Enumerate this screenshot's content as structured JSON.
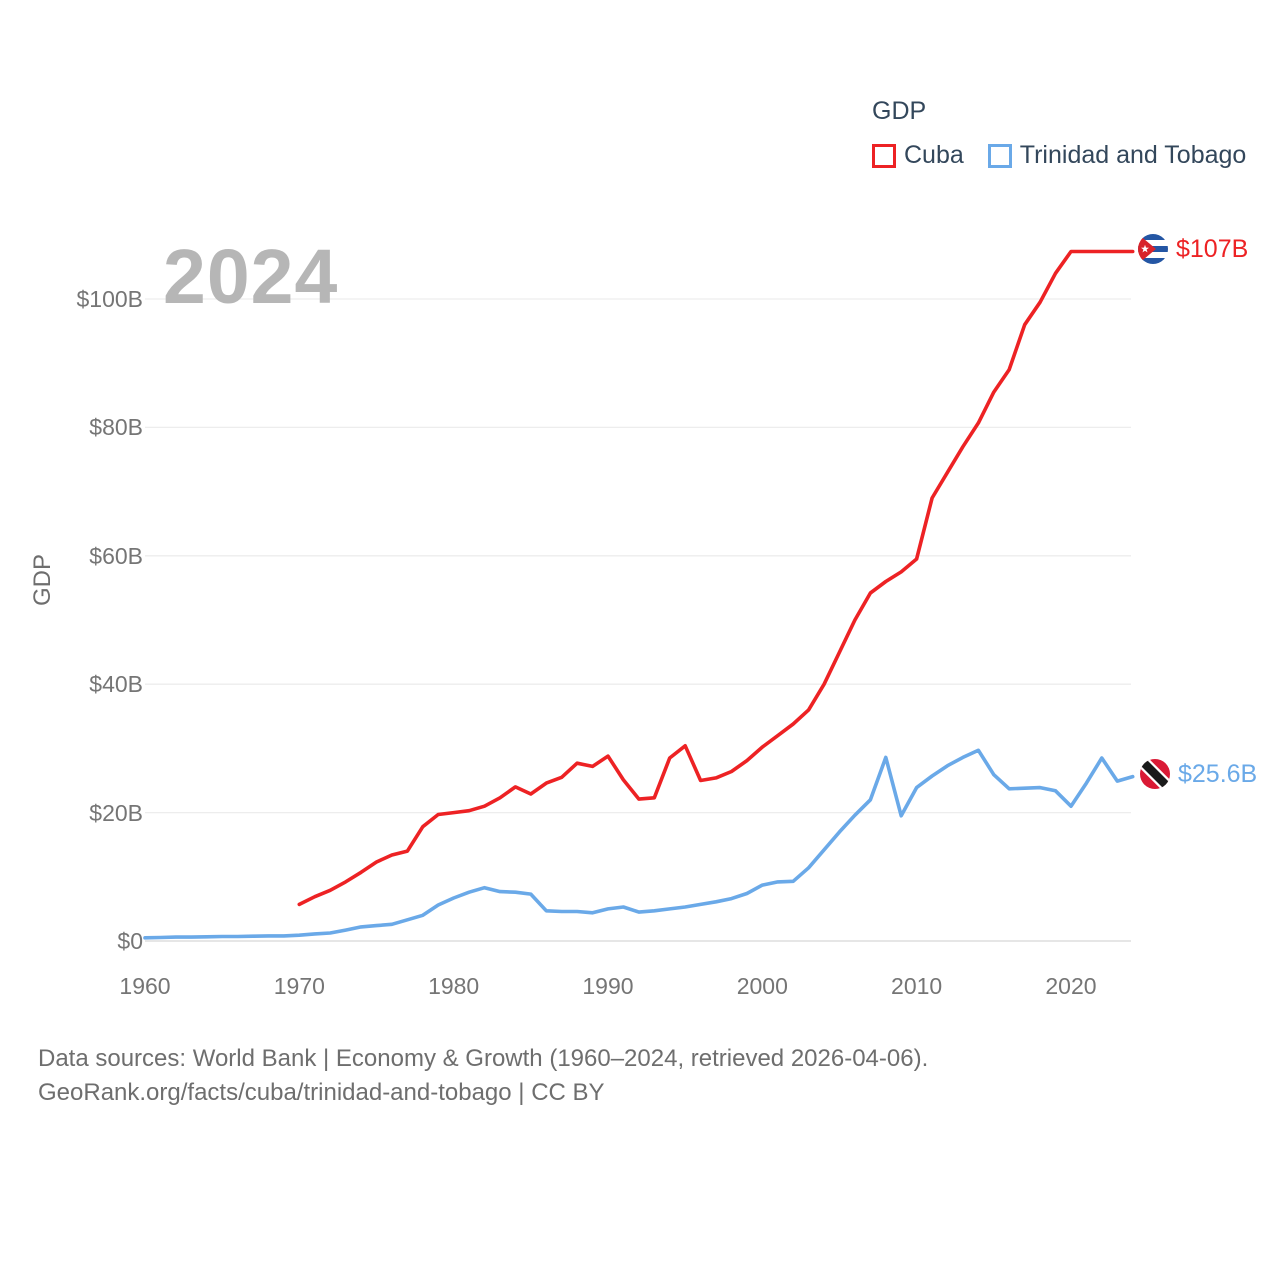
{
  "legend": {
    "title": "GDP",
    "items": [
      {
        "label": "Cuba",
        "color": "#ed2224"
      },
      {
        "label": "Trinidad and Tobago",
        "color": "#6aa9e8"
      }
    ]
  },
  "watermark": "2024",
  "y_axis_title": "GDP",
  "end_labels": [
    {
      "series": "Cuba",
      "label": "$107B",
      "color": "#ed2224",
      "flag_icon": "cuba-flag-icon"
    },
    {
      "series": "Trinidad and Tobago",
      "label": "$25.6B",
      "color": "#6aa9e8",
      "flag_icon": "trinidad-and-tobago-flag-icon"
    }
  ],
  "footer": {
    "line1": "Data sources: World Bank | Economy & Growth (1960–2024, retrieved 2026-04-06).",
    "line2": "GeoRank.org/facts/cuba/trinidad-and-tobago | CC BY"
  },
  "chart_data": {
    "type": "line",
    "title": "GDP",
    "xlabel": "",
    "ylabel": "GDP",
    "x_range": [
      1960,
      2024
    ],
    "ylim": [
      0,
      112
    ],
    "grid": "horizontal",
    "legend_position": "top-right",
    "y_ticks": [
      {
        "value": 0,
        "label": "$0"
      },
      {
        "value": 20,
        "label": "$20B"
      },
      {
        "value": 40,
        "label": "$40B"
      },
      {
        "value": 60,
        "label": "$60B"
      },
      {
        "value": 80,
        "label": "$80B"
      },
      {
        "value": 100,
        "label": "$100B"
      }
    ],
    "x_ticks": [
      {
        "value": 1960,
        "label": "1960"
      },
      {
        "value": 1970,
        "label": "1970"
      },
      {
        "value": 1980,
        "label": "1980"
      },
      {
        "value": 1990,
        "label": "1990"
      },
      {
        "value": 2000,
        "label": "2000"
      },
      {
        "value": 2010,
        "label": "2010"
      },
      {
        "value": 2020,
        "label": "2020"
      }
    ],
    "series": [
      {
        "name": "Cuba",
        "color": "#ed2224",
        "unit": "billion USD",
        "start_year": 1970,
        "values": [
          5.7,
          6.9,
          7.9,
          9.2,
          10.7,
          12.3,
          13.4,
          14.0,
          17.8,
          19.7,
          20.0,
          20.3,
          21.0,
          22.3,
          24.0,
          22.9,
          24.6,
          25.5,
          27.7,
          27.2,
          28.8,
          25.1,
          22.1,
          22.3,
          28.5,
          30.4,
          25.0,
          25.4,
          26.4,
          28.1,
          30.2,
          32.0,
          33.8,
          36.0,
          40.0,
          45.0,
          50.0,
          54.2,
          56.0,
          57.5,
          59.5,
          69.0,
          73.0,
          77.0,
          80.7,
          85.5,
          89.0,
          96.0,
          99.5,
          104.0,
          107.4,
          107.4,
          107.4,
          107.4,
          107.4
        ]
      },
      {
        "name": "Trinidad and Tobago",
        "color": "#6aa9e8",
        "unit": "billion USD",
        "start_year": 1960,
        "values": [
          0.5,
          0.55,
          0.6,
          0.6,
          0.65,
          0.7,
          0.7,
          0.75,
          0.8,
          0.8,
          0.9,
          1.1,
          1.25,
          1.7,
          2.2,
          2.4,
          2.6,
          3.3,
          4.0,
          5.6,
          6.7,
          7.6,
          8.3,
          7.7,
          7.6,
          7.3,
          4.7,
          4.6,
          4.6,
          4.4,
          5.0,
          5.3,
          4.5,
          4.7,
          5.0,
          5.3,
          5.7,
          6.1,
          6.6,
          7.4,
          8.7,
          9.2,
          9.3,
          11.4,
          14.2,
          17.0,
          19.6,
          22.0,
          28.6,
          19.5,
          23.9,
          25.7,
          27.3,
          28.6,
          29.7,
          25.9,
          23.7,
          23.8,
          23.9,
          23.4,
          21.0,
          24.6,
          28.5,
          24.9,
          25.6
        ]
      }
    ]
  }
}
